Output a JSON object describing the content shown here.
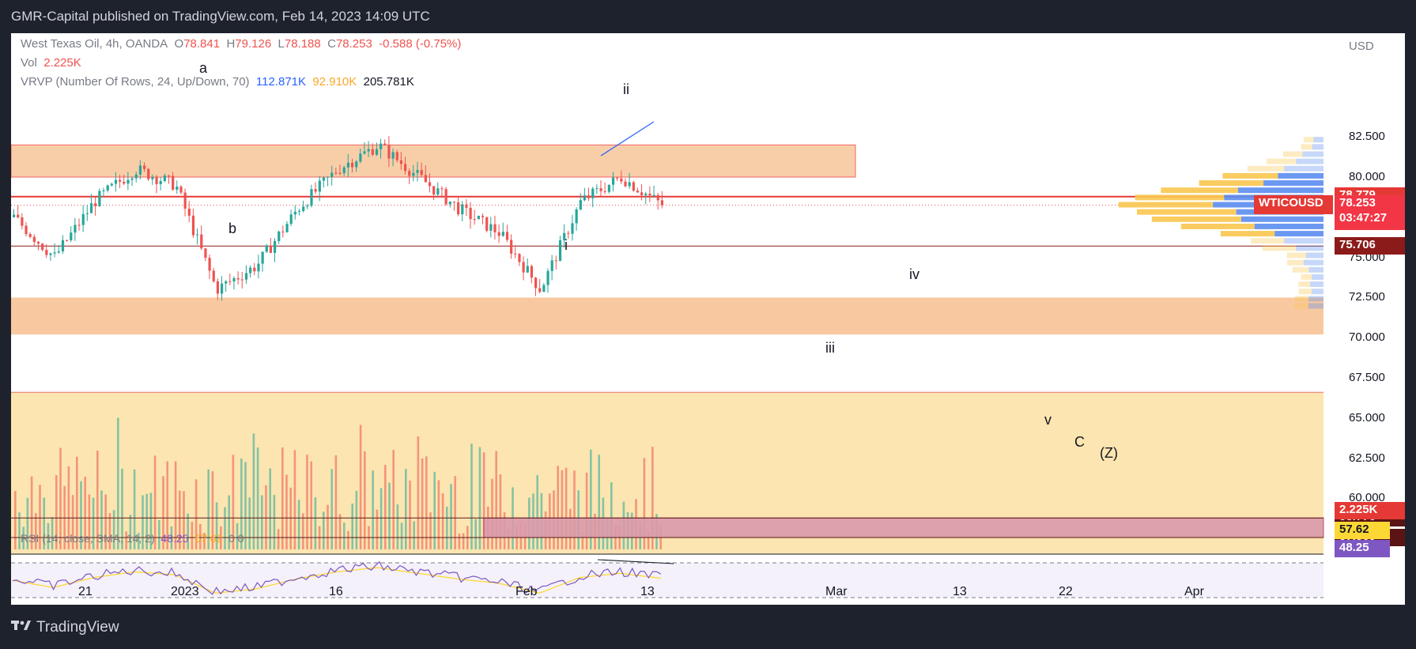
{
  "header": {
    "published": "GMR-Capital published on TradingView.com, Feb 14, 2023 14:09 UTC"
  },
  "footer": {
    "brand": "TradingView"
  },
  "legend": {
    "symbol": "West Texas Oil, 4h, OANDA",
    "o_label": "O",
    "o": "78.841",
    "h_label": "H",
    "h": "79.126",
    "l_label": "L",
    "l": "78.188",
    "c_label": "C",
    "c": "78.253",
    "change": "-0.588 (-0.75%)",
    "vol_label": "Vol",
    "vol": "2.225K",
    "vrvp_label": "VRVP (Number Of Rows, 24, Up/Down, 70)",
    "vrvp_up": "112.871K",
    "vrvp_down": "92.910K",
    "vrvp_total": "205.781K",
    "rsi_label": "RSI (14, close, SMA, 14, 2)",
    "rsi_value": "48.25",
    "rsi_ma": "57.62",
    "rsi_extra": "0  0"
  },
  "annotations": {
    "a": "a",
    "b": "b",
    "i": "i",
    "ii": "ii",
    "iii": "iii",
    "iv": "iv",
    "v": "v",
    "C": "C",
    "Z": "(Z)"
  },
  "price_axis": {
    "currency": "USD",
    "ticks": [
      "82.500",
      "80.000",
      "77.500",
      "75.000",
      "72.500",
      "70.000",
      "67.500",
      "65.000",
      "62.500",
      "60.000"
    ],
    "badges": {
      "level_high": "78.779",
      "symbol": "WTICOUSD",
      "last": "78.253",
      "countdown": "03:47:27",
      "level_mid": "75.706",
      "level_c1": "58.776",
      "level_c2": "57.560",
      "volume": "2.225K",
      "rsi_ma": "57.62",
      "rsi": "48.25"
    }
  },
  "time_axis": {
    "ticks": [
      "21",
      "2023",
      "16",
      "Feb",
      "13",
      "Mar",
      "13",
      "22",
      "Apr"
    ]
  },
  "colors": {
    "up": "#26a69a",
    "down": "#ef5350",
    "rsi": "#7e57c2",
    "rsi_ma": "#fdd835",
    "zone_orange": "#f8c9a0",
    "zone_yellow": "#fce5b0",
    "zone_pink": "#d99aaa"
  },
  "chart_data": {
    "type": "candlestick",
    "symbol": "WTICOUSD",
    "timeframe": "4h",
    "ylim": [
      59.3,
      83.5
    ],
    "last_close": 78.253,
    "horizontal_levels": [
      78.779,
      75.706,
      58.776,
      57.56
    ],
    "zones": [
      {
        "from": 80.0,
        "to": 82.0
      },
      {
        "from": 70.2,
        "to": 72.5
      },
      {
        "from": 55.0,
        "to": 66.6
      },
      {
        "from": 57.56,
        "to": 58.776
      }
    ],
    "price_path": [
      {
        "t": "Dec 17",
        "price": 77.5
      },
      {
        "t": "Dec 19",
        "price": 75.0
      },
      {
        "t": "Dec 22",
        "price": 78.5
      },
      {
        "t": "Dec 27",
        "price": 80.5
      },
      {
        "t": "Dec 30",
        "price": 79.5
      },
      {
        "t": "Jan 4",
        "price": 73.0
      },
      {
        "t": "Jan 9",
        "price": 74.5
      },
      {
        "t": "Jan 12",
        "price": 78.0
      },
      {
        "t": "Jan 18",
        "price": 80.5
      },
      {
        "t": "Jan 23",
        "price": 82.0
      },
      {
        "t": "Jan 27",
        "price": 80.0
      },
      {
        "t": "Jan 31",
        "price": 78.0
      },
      {
        "t": "Feb 3",
        "price": 76.5
      },
      {
        "t": "Feb 6",
        "price": 73.0
      },
      {
        "t": "Feb 10",
        "price": 78.5
      },
      {
        "t": "Feb 13",
        "price": 80.0
      },
      {
        "t": "Feb 14",
        "price": 78.253
      }
    ],
    "rsi": {
      "value": 48.25,
      "ma": 57.62
    }
  }
}
